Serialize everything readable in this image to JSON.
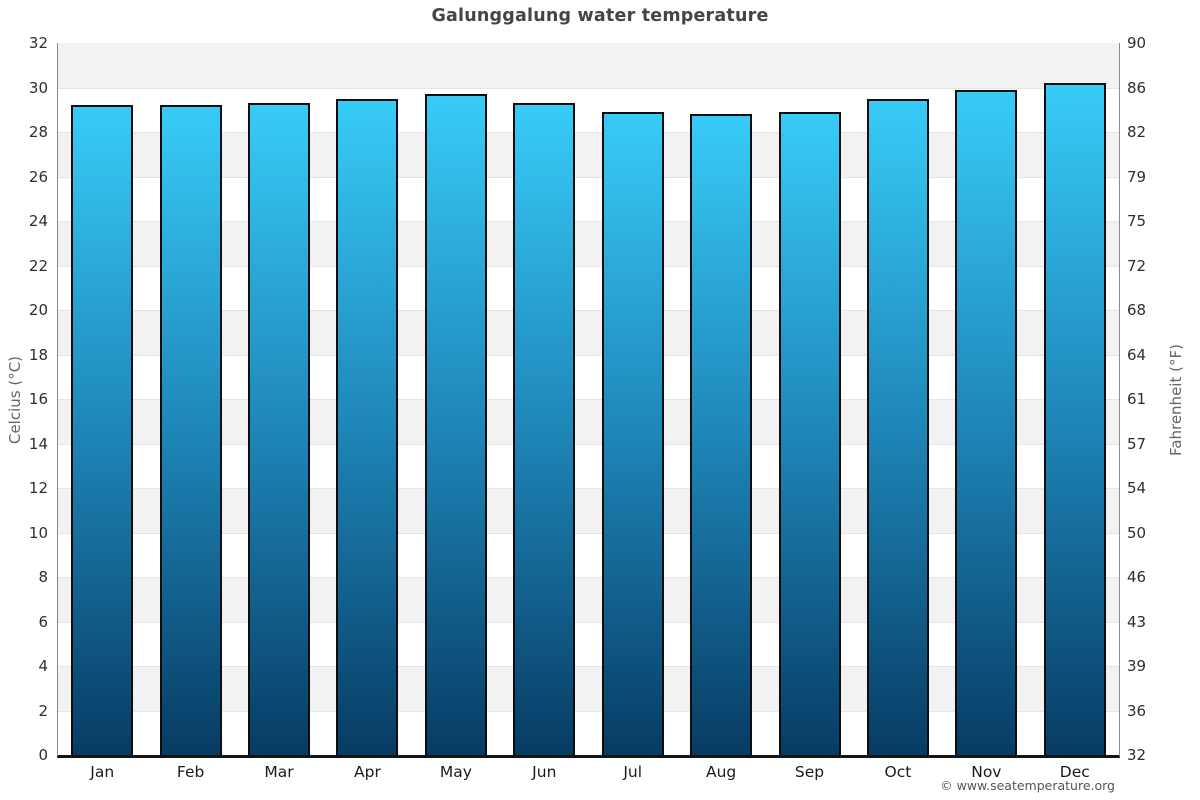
{
  "chart_data": {
    "type": "bar",
    "title": "Galunggalung water temperature",
    "xlabel": "",
    "ylabel_left": "Celcius (°C)",
    "ylabel_right": "Fahrenheit (°F)",
    "categories": [
      "Jan",
      "Feb",
      "Mar",
      "Apr",
      "May",
      "Jun",
      "Jul",
      "Aug",
      "Sep",
      "Oct",
      "Nov",
      "Dec"
    ],
    "series": [
      {
        "name": "Water temperature (°C)",
        "values": [
          29.2,
          29.2,
          29.3,
          29.5,
          29.7,
          29.3,
          28.9,
          28.8,
          28.9,
          29.5,
          29.9,
          30.2
        ]
      }
    ],
    "ylim_left": [
      0,
      32
    ],
    "yticks_left": [
      "32",
      "30",
      "28",
      "26",
      "24",
      "22",
      "20",
      "18",
      "16",
      "14",
      "12",
      "10",
      "8",
      "6",
      "4",
      "2",
      "0"
    ],
    "yticks_right": [
      "90",
      "86",
      "82",
      "79",
      "75",
      "72",
      "68",
      "64",
      "61",
      "57",
      "54",
      "50",
      "46",
      "43",
      "39",
      "36",
      "32"
    ],
    "legend": "none",
    "grid": "alternating horizontal bands every 2 degrees C, gray band starting at top (32-30)",
    "colors": {
      "bar_gradient_top": "#38cbf8",
      "bar_gradient_mid": "#1e86b8",
      "bar_gradient_bottom": "#073c64",
      "bar_border": "#0d0d0d",
      "band_gray": "#f2f2f2",
      "band_white": "#ffffff",
      "grid_line": "#e5e5e5",
      "axis_line": "#8c8c8c",
      "x_axis_line": "#141414",
      "title_color": "#454545",
      "tick_color": "#2e2e2e",
      "axis_label_color": "#666666"
    }
  },
  "footer": {
    "copyright": "© www.seatemperature.org"
  }
}
